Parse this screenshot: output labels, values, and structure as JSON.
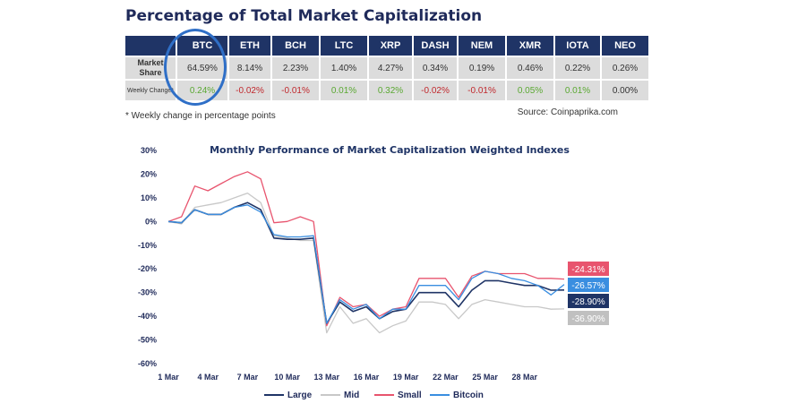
{
  "title": "Percentage of Total Market Capitalization",
  "table": {
    "columns": [
      "BTC",
      "ETH",
      "BCH",
      "LTC",
      "XRP",
      "DASH",
      "NEM",
      "XMR",
      "IOTA",
      "NEO"
    ],
    "market_share_label": "Market Share",
    "market_share": [
      "64.59%",
      "8.14%",
      "2.23%",
      "1.40%",
      "4.27%",
      "0.34%",
      "0.19%",
      "0.46%",
      "0.22%",
      "0.26%"
    ],
    "weekly_change_label": "Weekly Change*",
    "weekly_change": [
      "0.24%",
      "-0.02%",
      "-0.01%",
      "0.01%",
      "0.32%",
      "-0.02%",
      "-0.01%",
      "0.05%",
      "0.01%",
      "0.00%"
    ],
    "weekly_change_sign": [
      "pos",
      "neg",
      "neg",
      "pos",
      "pos",
      "neg",
      "neg",
      "pos",
      "pos",
      "neu"
    ]
  },
  "footnote": "* Weekly change in percentage points",
  "source": "Source: Coinpaprika.com",
  "colors": {
    "large": "#1f3466",
    "mid": "#c8c8c8",
    "small": "#e8546e",
    "bitcoin": "#3a8ee0",
    "header": "#1f3466",
    "highlight": "#2f6fc7"
  },
  "chart_data": {
    "type": "line",
    "title": "Monthly Performance of Market Capitalization Weighted Indexes",
    "ylim": [
      -60,
      30
    ],
    "yticks": [
      "30%",
      "20%",
      "10%",
      "0%",
      "-10%",
      "-20%",
      "-30%",
      "-40%",
      "-50%",
      "-60%"
    ],
    "xticks": [
      "1 Mar",
      "4 Mar",
      "7 Mar",
      "10 Mar",
      "13 Mar",
      "16 Mar",
      "19 Mar",
      "22 Mar",
      "25 Mar",
      "28 Mar"
    ],
    "x": [
      "1 Mar",
      "2 Mar",
      "3 Mar",
      "4 Mar",
      "5 Mar",
      "6 Mar",
      "7 Mar",
      "8 Mar",
      "9 Mar",
      "10 Mar",
      "11 Mar",
      "12 Mar",
      "13 Mar",
      "14 Mar",
      "15 Mar",
      "16 Mar",
      "17 Mar",
      "18 Mar",
      "19 Mar",
      "20 Mar",
      "21 Mar",
      "22 Mar",
      "23 Mar",
      "24 Mar",
      "25 Mar",
      "26 Mar",
      "27 Mar",
      "28 Mar",
      "29 Mar",
      "30 Mar",
      "31 Mar"
    ],
    "series": [
      {
        "name": "Large",
        "color": "#1f3466",
        "values": [
          0,
          -0.5,
          5,
          3,
          3,
          6,
          8,
          5,
          -7,
          -7.5,
          -7.5,
          -7,
          -43,
          -34,
          -38,
          -36,
          -41,
          -38,
          -37,
          -30,
          -30,
          -30,
          -36,
          -29,
          -25,
          -25,
          -26,
          -27,
          -27,
          -29,
          -28.9
        ]
      },
      {
        "name": "Mid",
        "color": "#c8c8c8",
        "values": [
          0,
          -1,
          6,
          7,
          8,
          10,
          12,
          8,
          -6,
          -7,
          -8,
          -8,
          -47,
          -36,
          -43,
          -41,
          -47,
          -44,
          -42,
          -34,
          -34,
          -35,
          -41,
          -35,
          -33,
          -34,
          -35,
          -36,
          -36,
          -37,
          -36.9
        ]
      },
      {
        "name": "Small",
        "color": "#e8546e",
        "values": [
          0,
          2,
          15,
          13,
          16,
          19,
          21,
          18,
          -0.5,
          0,
          2,
          0,
          -44,
          -32,
          -36,
          -35,
          -40,
          -37,
          -36,
          -24,
          -24,
          -24,
          -32,
          -23,
          -21,
          -22,
          -22,
          -22,
          -24,
          -24,
          -24.31
        ]
      },
      {
        "name": "Bitcoin",
        "color": "#3a8ee0",
        "values": [
          0,
          -0.5,
          5,
          3,
          3,
          6,
          7,
          4,
          -5.5,
          -6.5,
          -6.5,
          -6,
          -43,
          -33,
          -37,
          -35,
          -41,
          -37,
          -37,
          -27,
          -27,
          -27,
          -33,
          -24,
          -21,
          -22,
          -24,
          -25,
          -27,
          -31,
          -26.57
        ]
      }
    ],
    "end_labels": [
      {
        "series": "Small",
        "text": "-24.31%",
        "color": "#e8546e"
      },
      {
        "series": "Bitcoin",
        "text": "-26.57%",
        "color": "#3a8ee0"
      },
      {
        "series": "Large",
        "text": "-28.90%",
        "color": "#1f3466"
      },
      {
        "series": "Mid",
        "text": "-36.90%",
        "color": "#c0c0c0"
      }
    ],
    "legend": [
      "Large",
      "Mid",
      "Small",
      "Bitcoin"
    ],
    "legend_position": "bottom",
    "grid": false
  }
}
